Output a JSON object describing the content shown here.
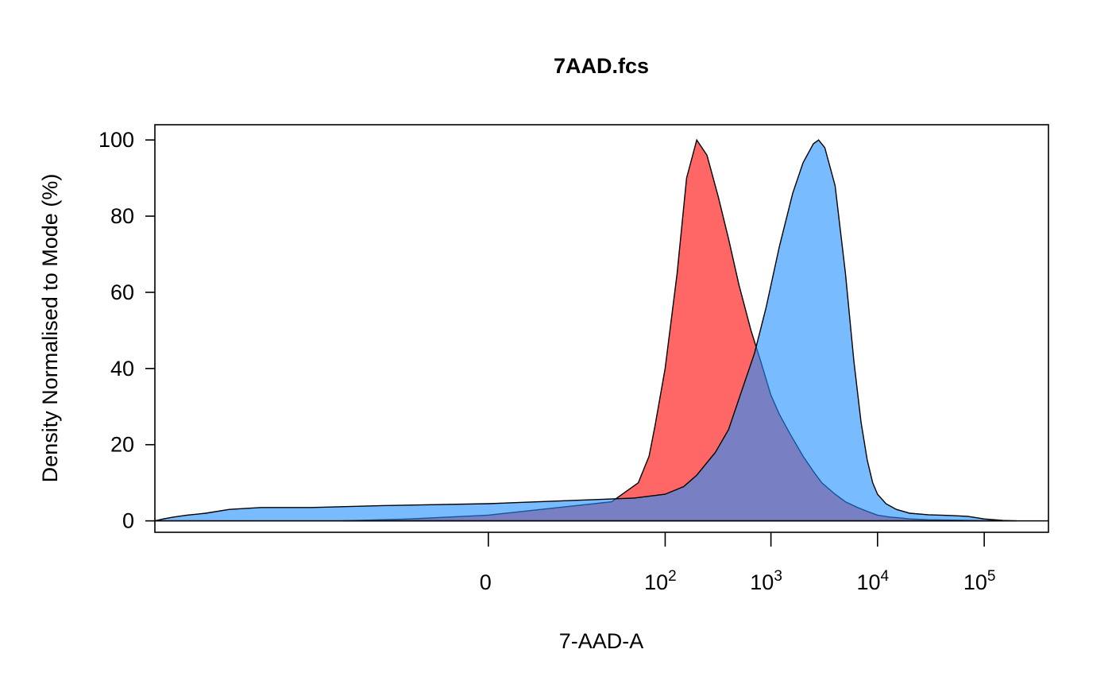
{
  "chart_data": {
    "type": "area",
    "title": "7AAD.fcs",
    "xlabel": "7-AAD-A",
    "ylabel": "Density Normalised to Mode (%)",
    "x_scale": "biexponential (linear near 0, log10 above)",
    "ylim": [
      -3,
      104
    ],
    "xlim": [
      -3000,
      400000
    ],
    "y_ticks": [
      0,
      20,
      40,
      60,
      80,
      100
    ],
    "x_ticks": [
      {
        "value": 0,
        "label": "0"
      },
      {
        "value": 100,
        "label": "10",
        "exp": "2"
      },
      {
        "value": 1000,
        "label": "10",
        "exp": "3"
      },
      {
        "value": 10000,
        "label": "10",
        "exp": "4"
      },
      {
        "value": 100000,
        "label": "10",
        "exp": "5"
      }
    ],
    "series": [
      {
        "color": "#ff0000",
        "opacity": 0.6,
        "x": [
          -50,
          -10,
          0,
          30,
          55,
          70,
          80,
          100,
          130,
          160,
          200,
          250,
          320,
          400,
          500,
          650,
          800,
          1000,
          1200,
          1500,
          2000,
          2500,
          3000,
          4000,
          5000,
          6500,
          8000,
          10000,
          13000,
          16000,
          20000,
          30000,
          50000,
          100000,
          150000
        ],
        "y": [
          0,
          0.5,
          1.5,
          5,
          10,
          17,
          25,
          40,
          65,
          90,
          100,
          96,
          85,
          74,
          62,
          50,
          42,
          33,
          28,
          23,
          17,
          13,
          10,
          7,
          5,
          3.5,
          2.5,
          1.5,
          1,
          0.8,
          0.5,
          0.3,
          0.2,
          0.05,
          0
        ]
      },
      {
        "color": "#1e90ff",
        "opacity": 0.6,
        "x": [
          -3000,
          -2500,
          -2000,
          -1500,
          -1000,
          -600,
          -300,
          -100,
          -20,
          0,
          50,
          100,
          150,
          200,
          300,
          400,
          500,
          700,
          900,
          1200,
          1600,
          2000,
          2500,
          2800,
          3200,
          4000,
          5000,
          6000,
          7000,
          8000,
          9000,
          10000,
          12000,
          15000,
          20000,
          30000,
          50000,
          70000,
          100000,
          150000,
          200000
        ],
        "y": [
          0,
          0.5,
          1,
          1.5,
          2,
          3,
          3.5,
          3.5,
          4,
          4.5,
          6,
          7,
          9,
          12,
          18,
          24,
          32,
          44,
          56,
          72,
          86,
          94,
          99,
          100,
          98,
          88,
          65,
          42,
          26,
          16,
          10,
          7,
          4.5,
          3,
          2,
          1.6,
          1.4,
          1.2,
          0.5,
          0.1,
          0
        ]
      }
    ]
  }
}
